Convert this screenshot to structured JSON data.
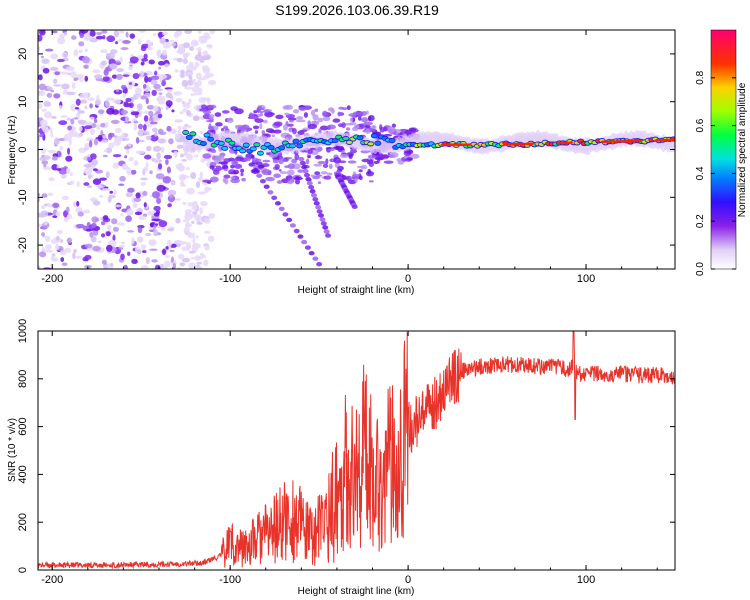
{
  "title": "S199.2026.103.06.39.R19",
  "chart_data": [
    {
      "type": "heatmap",
      "name": "spectrogram",
      "xlabel": "Height of straight line (km)",
      "ylabel": "Frequency (Hz)",
      "xlim": [
        -208,
        150
      ],
      "ylim": [
        -25,
        25
      ],
      "x_ticks": [
        -200,
        -100,
        0,
        100
      ],
      "y_ticks": [
        -20,
        -10,
        0,
        10,
        20
      ],
      "colorbar": {
        "label": "Normalized spectral amplitude",
        "range": [
          0,
          1
        ],
        "ticks": [
          0.0,
          0.2,
          0.4,
          0.6,
          0.8
        ],
        "tick_labels": [
          "0.0",
          "0.2",
          "0.4",
          "0.6",
          "0.8"
        ],
        "colormap": [
          "#ffffff",
          "#c9b0f0",
          "#7a20f0",
          "#2020ff",
          "#00c0ff",
          "#00ff80",
          "#c0ff00",
          "#ffd000",
          "#ff2000",
          "#ff0080"
        ]
      },
      "ridge": {
        "description_points_x": [
          -125,
          -100,
          -80,
          -60,
          -40,
          -20,
          0,
          20,
          50,
          100,
          150
        ],
        "description_points_y": [
          3,
          1,
          0,
          1,
          2,
          2,
          1,
          1,
          1,
          1.5,
          2
        ]
      }
    },
    {
      "type": "line",
      "name": "snr",
      "xlabel": "Height of straight line (km)",
      "ylabel": "SNR (10 * v/v)",
      "xlim": [
        -208,
        150
      ],
      "ylim": [
        0,
        1000
      ],
      "x_ticks": [
        -200,
        -100,
        0,
        100
      ],
      "y_ticks": [
        0,
        200,
        400,
        600,
        800,
        1000
      ],
      "color": "#e8332a",
      "series": [
        {
          "name": "SNR",
          "x": [
            -208,
            -190,
            -170,
            -150,
            -130,
            -115,
            -105,
            -100,
            -95,
            -90,
            -85,
            -80,
            -75,
            -70,
            -65,
            -60,
            -55,
            -50,
            -45,
            -40,
            -35,
            -30,
            -25,
            -20,
            -15,
            -10,
            -5,
            0,
            5,
            10,
            15,
            20,
            25,
            30,
            40,
            50,
            60,
            70,
            80,
            90,
            93,
            95,
            100,
            110,
            120,
            130,
            140,
            150
          ],
          "y": [
            20,
            20,
            20,
            22,
            25,
            30,
            60,
            120,
            90,
            100,
            130,
            150,
            170,
            200,
            220,
            180,
            140,
            170,
            230,
            300,
            420,
            380,
            500,
            440,
            350,
            450,
            520,
            590,
            620,
            650,
            700,
            760,
            800,
            830,
            850,
            860,
            860,
            855,
            850,
            840,
            850,
            820,
            820,
            820,
            820,
            815,
            815,
            810
          ]
        }
      ]
    }
  ]
}
